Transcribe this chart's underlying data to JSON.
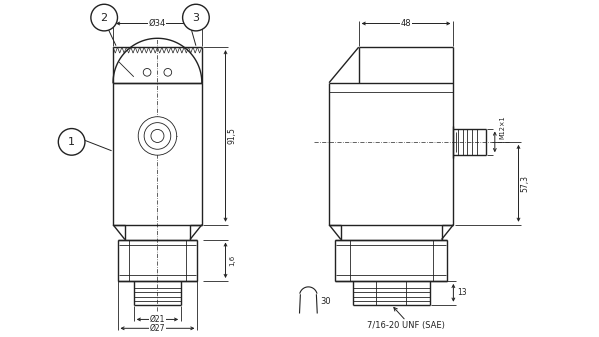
{
  "bg_color": "#ffffff",
  "line_color": "#222222",
  "lw": 1.0,
  "thin_lw": 0.6,
  "fig_width": 5.99,
  "fig_height": 3.37,
  "annotations": {
    "circle1_label": "1",
    "circle2_label": "2",
    "circle3_label": "3",
    "dim_34": "Ø34",
    "dim_91_5": "91,5",
    "dim_1_6": "1,6",
    "dim_21": "Ø21",
    "dim_27": "Ø27",
    "dim_48": "48",
    "dim_m12x1": "M12×1",
    "dim_57_3": "57,3",
    "dim_13": "13",
    "dim_30": "30",
    "wrench_label": "7/16-20 UNF (SAE)"
  }
}
